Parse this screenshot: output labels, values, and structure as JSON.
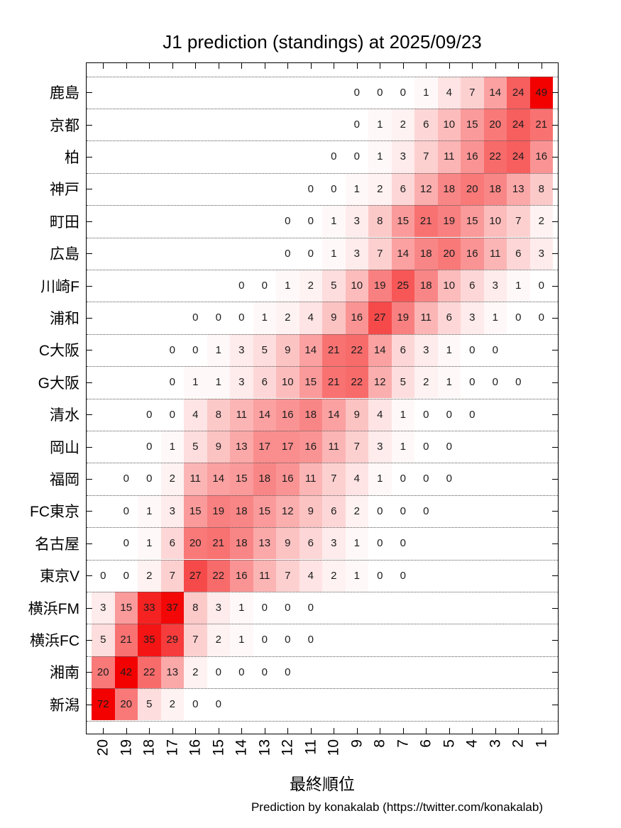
{
  "title": "J1 prediction (standings) at 2025/09/23",
  "xlabel": "最終順位",
  "footer": "Prediction by konakalab (https://twitter.com/konakalab)",
  "colors": {
    "heat_low": "#ffffff",
    "heat_high": "#f30000",
    "cell_text": "#1c1c1c"
  },
  "chart_data": {
    "type": "heatmap",
    "title": "J1 prediction (standings) at 2025/09/23",
    "xlabel": "最終順位",
    "x_ticks": [
      20,
      19,
      18,
      17,
      16,
      15,
      14,
      13,
      12,
      11,
      10,
      9,
      8,
      7,
      6,
      5,
      4,
      3,
      2,
      1
    ],
    "legend_position": "none",
    "grid": "horizontal-dotted",
    "value_range": [
      0,
      72
    ],
    "rows": [
      {
        "team": "鹿島",
        "values": [
          null,
          null,
          null,
          null,
          null,
          null,
          null,
          null,
          null,
          null,
          null,
          0,
          0,
          0,
          1,
          4,
          7,
          14,
          24,
          49
        ]
      },
      {
        "team": "京都",
        "values": [
          null,
          null,
          null,
          null,
          null,
          null,
          null,
          null,
          null,
          null,
          null,
          0,
          1,
          2,
          6,
          10,
          15,
          20,
          24,
          21
        ]
      },
      {
        "team": "柏",
        "values": [
          null,
          null,
          null,
          null,
          null,
          null,
          null,
          null,
          null,
          null,
          0,
          0,
          1,
          3,
          7,
          11,
          16,
          22,
          24,
          16
        ]
      },
      {
        "team": "神戸",
        "values": [
          null,
          null,
          null,
          null,
          null,
          null,
          null,
          null,
          null,
          0,
          0,
          1,
          2,
          6,
          12,
          18,
          20,
          18,
          13,
          8
        ]
      },
      {
        "team": "町田",
        "values": [
          null,
          null,
          null,
          null,
          null,
          null,
          null,
          null,
          0,
          0,
          1,
          3,
          8,
          15,
          21,
          19,
          15,
          10,
          7,
          2
        ]
      },
      {
        "team": "広島",
        "values": [
          null,
          null,
          null,
          null,
          null,
          null,
          null,
          null,
          0,
          0,
          1,
          3,
          7,
          14,
          18,
          20,
          16,
          11,
          6,
          3
        ]
      },
      {
        "team": "川崎F",
        "values": [
          null,
          null,
          null,
          null,
          null,
          null,
          0,
          0,
          1,
          2,
          5,
          10,
          19,
          25,
          18,
          10,
          6,
          3,
          1,
          0
        ]
      },
      {
        "team": "浦和",
        "values": [
          null,
          null,
          null,
          null,
          0,
          0,
          0,
          1,
          2,
          4,
          9,
          16,
          27,
          19,
          11,
          6,
          3,
          1,
          0,
          0
        ]
      },
      {
        "team": "C大阪",
        "values": [
          null,
          null,
          null,
          0,
          0,
          1,
          3,
          5,
          9,
          14,
          21,
          22,
          14,
          6,
          3,
          1,
          0,
          0,
          null,
          null
        ]
      },
      {
        "team": "G大阪",
        "values": [
          null,
          null,
          null,
          0,
          1,
          1,
          3,
          6,
          10,
          15,
          21,
          22,
          12,
          5,
          2,
          1,
          0,
          0,
          0,
          null
        ]
      },
      {
        "team": "清水",
        "values": [
          null,
          null,
          0,
          0,
          4,
          8,
          11,
          14,
          16,
          18,
          14,
          9,
          4,
          1,
          0,
          0,
          0,
          null,
          null,
          null
        ]
      },
      {
        "team": "岡山",
        "values": [
          null,
          null,
          0,
          1,
          5,
          9,
          13,
          17,
          17,
          16,
          11,
          7,
          3,
          1,
          0,
          0,
          null,
          null,
          null,
          null
        ]
      },
      {
        "team": "福岡",
        "values": [
          null,
          0,
          0,
          2,
          11,
          14,
          15,
          18,
          16,
          11,
          7,
          4,
          1,
          0,
          0,
          0,
          null,
          null,
          null,
          null
        ]
      },
      {
        "team": "FC東京",
        "values": [
          null,
          0,
          1,
          3,
          15,
          19,
          18,
          15,
          12,
          9,
          6,
          2,
          0,
          0,
          0,
          null,
          null,
          null,
          null,
          null
        ]
      },
      {
        "team": "名古屋",
        "values": [
          null,
          0,
          1,
          6,
          20,
          21,
          18,
          13,
          9,
          6,
          3,
          1,
          0,
          0,
          null,
          null,
          null,
          null,
          null,
          null
        ]
      },
      {
        "team": "東京V",
        "values": [
          0,
          0,
          2,
          7,
          27,
          22,
          16,
          11,
          7,
          4,
          2,
          1,
          0,
          0,
          null,
          null,
          null,
          null,
          null,
          null
        ]
      },
      {
        "team": "横浜FM",
        "values": [
          3,
          15,
          33,
          37,
          8,
          3,
          1,
          0,
          0,
          0,
          null,
          null,
          null,
          null,
          null,
          null,
          null,
          null,
          null,
          null
        ]
      },
      {
        "team": "横浜FC",
        "values": [
          5,
          21,
          35,
          29,
          7,
          2,
          1,
          0,
          0,
          0,
          null,
          null,
          null,
          null,
          null,
          null,
          null,
          null,
          null,
          null
        ]
      },
      {
        "team": "湘南",
        "values": [
          20,
          42,
          22,
          13,
          2,
          0,
          0,
          0,
          0,
          null,
          null,
          null,
          null,
          null,
          null,
          null,
          null,
          null,
          null,
          null
        ]
      },
      {
        "team": "新潟",
        "values": [
          72,
          20,
          5,
          2,
          0,
          0,
          null,
          null,
          null,
          null,
          null,
          null,
          null,
          null,
          null,
          null,
          null,
          null,
          null,
          null
        ]
      }
    ]
  }
}
